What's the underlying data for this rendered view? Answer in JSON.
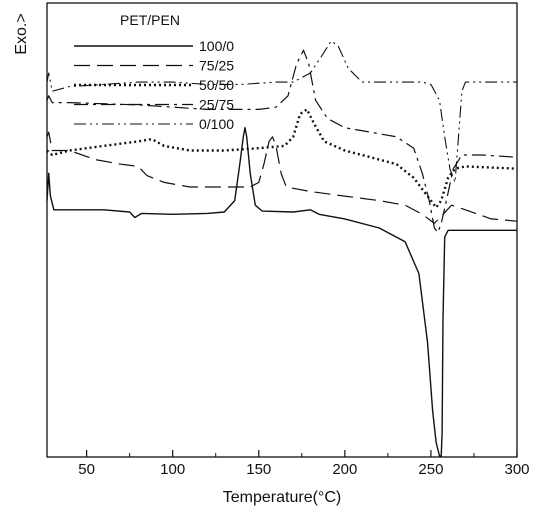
{
  "chart_data": {
    "type": "line",
    "title": "",
    "xlabel": "Temperature(°C)",
    "ylabel": "Exo.>",
    "xlim": [
      27,
      300
    ],
    "ylim": [
      0,
      100
    ],
    "y_tick_labels": "none",
    "x_ticks": [
      50,
      100,
      150,
      200,
      250,
      300
    ],
    "grid": false,
    "legend": {
      "title": "PET/PEN",
      "placement": "top-left"
    },
    "series": [
      {
        "name": "100/0",
        "dash": "solid",
        "points": [
          [
            27,
            56
          ],
          [
            28,
            62
          ],
          [
            29,
            57
          ],
          [
            31,
            54
          ],
          [
            40,
            54
          ],
          [
            60,
            54
          ],
          [
            75,
            53.5
          ],
          [
            78,
            52.3
          ],
          [
            82,
            53.2
          ],
          [
            100,
            53
          ],
          [
            120,
            53.2
          ],
          [
            130,
            53.5
          ],
          [
            136,
            56
          ],
          [
            139,
            64
          ],
          [
            141,
            70
          ],
          [
            142,
            72
          ],
          [
            143,
            70
          ],
          [
            145,
            62
          ],
          [
            148,
            55
          ],
          [
            152,
            53.7
          ],
          [
            170,
            53.5
          ],
          [
            180,
            54
          ],
          [
            185,
            53
          ],
          [
            200,
            52
          ],
          [
            220,
            50
          ],
          [
            235,
            47
          ],
          [
            243,
            40
          ],
          [
            248,
            25
          ],
          [
            251,
            10
          ],
          [
            253,
            3
          ],
          [
            255,
            -2
          ],
          [
            256,
            -2
          ],
          [
            256.5,
            5
          ],
          [
            257,
            30
          ],
          [
            258,
            48
          ],
          [
            260,
            49.5
          ],
          [
            280,
            49.5
          ],
          [
            300,
            49.5
          ]
        ]
      },
      {
        "name": "75/25",
        "dash": "long-dash",
        "points": [
          [
            27,
            70
          ],
          [
            28,
            71
          ],
          [
            30,
            67
          ],
          [
            40,
            67
          ],
          [
            55,
            65
          ],
          [
            70,
            64
          ],
          [
            80,
            63.5
          ],
          [
            85,
            61.5
          ],
          [
            95,
            60
          ],
          [
            110,
            59
          ],
          [
            130,
            59
          ],
          [
            145,
            59
          ],
          [
            150,
            60
          ],
          [
            153,
            64
          ],
          [
            156,
            69
          ],
          [
            158,
            70
          ],
          [
            160,
            68
          ],
          [
            163,
            62
          ],
          [
            166,
            59
          ],
          [
            180,
            58
          ],
          [
            200,
            57
          ],
          [
            220,
            56
          ],
          [
            235,
            55
          ],
          [
            245,
            53
          ],
          [
            252,
            51
          ],
          [
            257,
            53
          ],
          [
            262,
            55
          ],
          [
            270,
            54
          ],
          [
            285,
            52
          ],
          [
            300,
            51.5
          ]
        ]
      },
      {
        "name": "50/50",
        "dash": "dotted",
        "points": [
          [
            27,
            67
          ],
          [
            30,
            66
          ],
          [
            40,
            67
          ],
          [
            60,
            68
          ],
          [
            80,
            69
          ],
          [
            88,
            69.5
          ],
          [
            95,
            68
          ],
          [
            110,
            67
          ],
          [
            130,
            67
          ],
          [
            150,
            67.5
          ],
          [
            165,
            68
          ],
          [
            170,
            70
          ],
          [
            174,
            75
          ],
          [
            178,
            76
          ],
          [
            182,
            73
          ],
          [
            188,
            69
          ],
          [
            200,
            67
          ],
          [
            215,
            65.5
          ],
          [
            230,
            64
          ],
          [
            240,
            61
          ],
          [
            246,
            58
          ],
          [
            250,
            56
          ],
          [
            253,
            54.5
          ],
          [
            256,
            56
          ],
          [
            260,
            61
          ],
          [
            264,
            63
          ],
          [
            270,
            63.5
          ],
          [
            300,
            63
          ]
        ]
      },
      {
        "name": "25/75",
        "dash": "dash-dot",
        "points": [
          [
            27,
            78
          ],
          [
            28,
            79
          ],
          [
            30,
            77.5
          ],
          [
            40,
            77.5
          ],
          [
            80,
            77
          ],
          [
            120,
            76
          ],
          [
            150,
            76
          ],
          [
            160,
            76.5
          ],
          [
            167,
            79
          ],
          [
            172,
            86
          ],
          [
            176,
            89
          ],
          [
            179,
            86
          ],
          [
            183,
            78
          ],
          [
            190,
            74
          ],
          [
            200,
            72
          ],
          [
            215,
            71
          ],
          [
            230,
            70
          ],
          [
            240,
            67.5
          ],
          [
            245,
            62
          ],
          [
            249,
            56
          ],
          [
            252,
            50
          ],
          [
            254,
            49
          ],
          [
            256,
            51
          ],
          [
            259,
            56
          ],
          [
            263,
            63
          ],
          [
            268,
            66
          ],
          [
            280,
            66
          ],
          [
            300,
            65.5
          ]
        ]
      },
      {
        "name": "0/100",
        "dash": "dash-dot-dot",
        "points": [
          [
            27,
            82
          ],
          [
            28,
            84
          ],
          [
            30,
            80
          ],
          [
            40,
            81
          ],
          [
            60,
            81.5
          ],
          [
            80,
            82
          ],
          [
            100,
            82
          ],
          [
            120,
            81.5
          ],
          [
            140,
            81.5
          ],
          [
            160,
            82
          ],
          [
            170,
            82
          ],
          [
            180,
            84
          ],
          [
            187,
            88
          ],
          [
            192,
            91
          ],
          [
            196,
            90
          ],
          [
            202,
            85
          ],
          [
            210,
            82
          ],
          [
            230,
            82
          ],
          [
            245,
            82
          ],
          [
            250,
            81.5
          ],
          [
            255,
            78
          ],
          [
            258,
            70
          ],
          [
            261,
            63
          ],
          [
            264,
            60
          ],
          [
            266,
            70
          ],
          [
            268,
            80
          ],
          [
            270,
            82
          ],
          [
            300,
            82
          ]
        ]
      }
    ]
  }
}
